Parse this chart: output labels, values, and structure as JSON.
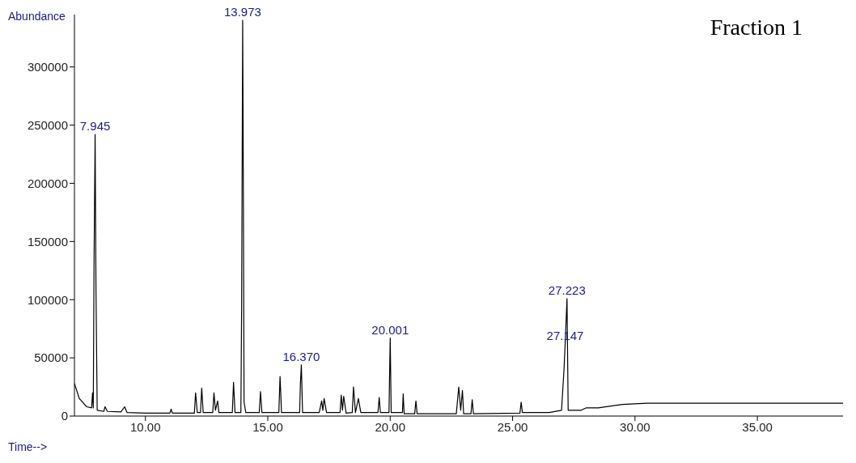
{
  "chart_data": {
    "type": "line",
    "title": "Fraction 1",
    "xlabel": "Time-->",
    "ylabel": "Abundance",
    "xlim": [
      7.1,
      38.5
    ],
    "ylim": [
      0,
      345000
    ],
    "xticks": [
      {
        "value": 10,
        "label": "10.00"
      },
      {
        "value": 15,
        "label": "15.00"
      },
      {
        "value": 20,
        "label": "20.00"
      },
      {
        "value": 25,
        "label": "25.00"
      },
      {
        "value": 30,
        "label": "30.00"
      },
      {
        "value": 35,
        "label": "35.00"
      }
    ],
    "yticks": [
      0,
      50000,
      100000,
      150000,
      200000,
      250000,
      300000
    ],
    "grid": false,
    "marker": "none",
    "line_style": "solid",
    "annotations": [
      {
        "text": "7.945",
        "x": 7.945,
        "y": 242000
      },
      {
        "text": "13.973",
        "x": 13.973,
        "y": 340000
      },
      {
        "text": "16.370",
        "x": 16.37,
        "y": 44000
      },
      {
        "text": "20.001",
        "x": 20.001,
        "y": 67000
      },
      {
        "text": "27.147",
        "x": 27.147,
        "y": 62000
      },
      {
        "text": "27.223",
        "x": 27.223,
        "y": 101000
      }
    ],
    "series": [
      {
        "color": "#000000",
        "x": [
          7.1,
          7.3,
          7.6,
          7.8,
          7.84,
          7.87,
          7.9,
          7.945,
          7.98,
          8.03,
          8.3,
          8.35,
          8.45,
          9.0,
          9.15,
          9.25,
          10,
          11.0,
          11.05,
          11.1,
          12.0,
          12.05,
          12.12,
          12.25,
          12.3,
          12.36,
          12.75,
          12.8,
          12.86,
          12.95,
          13.0,
          13.55,
          13.6,
          13.66,
          13.9,
          13.93,
          13.973,
          14.0,
          14.03,
          14.1,
          14.65,
          14.7,
          14.76,
          15.45,
          15.5,
          15.56,
          16.3,
          16.33,
          16.37,
          16.42,
          17.1,
          17.2,
          17.25,
          17.3,
          17.4,
          17.95,
          18.0,
          18.05,
          18.1,
          18.2,
          18.45,
          18.5,
          18.58,
          18.7,
          18.8,
          19.5,
          19.55,
          19.6,
          19.95,
          19.98,
          20.001,
          20.04,
          20.5,
          20.53,
          20.57,
          21.0,
          21.05,
          21.1,
          22.7,
          22.8,
          22.88,
          22.95,
          23.0,
          23.3,
          23.35,
          23.4,
          25.3,
          25.35,
          25.4,
          26.5,
          27.0,
          27.1,
          27.147,
          27.223,
          27.27,
          27.8,
          28.0,
          28.5,
          29.5,
          30.5,
          38.5
        ],
        "values": [
          28000,
          15000,
          8000,
          7000,
          20000,
          7000,
          128000,
          242000,
          110000,
          5000,
          4000,
          8000,
          4000,
          3500,
          8000,
          3000,
          2500,
          2500,
          6000,
          2500,
          2500,
          20000,
          3000,
          3000,
          24000,
          3000,
          3000,
          20000,
          5000,
          13000,
          3000,
          3000,
          29000,
          3000,
          3000,
          92000,
          340000,
          200000,
          12000,
          3000,
          3000,
          21000,
          3000,
          3000,
          34000,
          3000,
          3000,
          27000,
          44000,
          3000,
          3000,
          13000,
          5000,
          15000,
          3000,
          3000,
          18000,
          5000,
          17000,
          2500,
          3000,
          25000,
          3000,
          15000,
          3000,
          3000,
          16000,
          3000,
          3000,
          42000,
          67000,
          3000,
          3000,
          19000,
          2000,
          2000,
          13000,
          2000,
          2000,
          25000,
          5000,
          22000,
          2000,
          2000,
          14000,
          2000,
          2500,
          12000,
          3000,
          3000,
          5000,
          40000,
          62000,
          101000,
          5000,
          5000,
          7000,
          7000,
          10000,
          11000,
          11000
        ]
      }
    ]
  }
}
